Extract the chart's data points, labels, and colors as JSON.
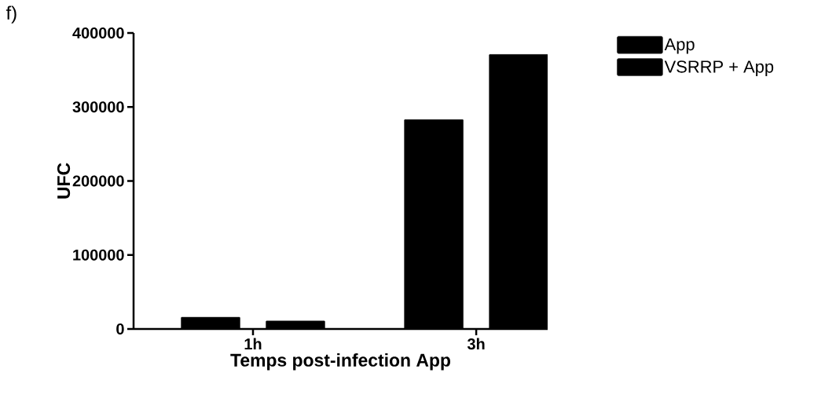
{
  "chart_data": {
    "type": "bar",
    "annotations": [
      "f)"
    ],
    "xlabel": "Temps post-infection  App",
    "ylabel": "UFC",
    "categories": [
      "1h",
      "3h"
    ],
    "series": [
      {
        "name": "App",
        "color": "#000000",
        "values": [
          16000,
          283000
        ]
      },
      {
        "name": "VSRRP + App",
        "color": "#000000",
        "values": [
          11000,
          371000
        ]
      }
    ],
    "ylim": [
      0,
      400000
    ],
    "yticks": [
      0,
      100000,
      200000,
      300000,
      400000
    ],
    "grid": false,
    "legend": "top right"
  }
}
